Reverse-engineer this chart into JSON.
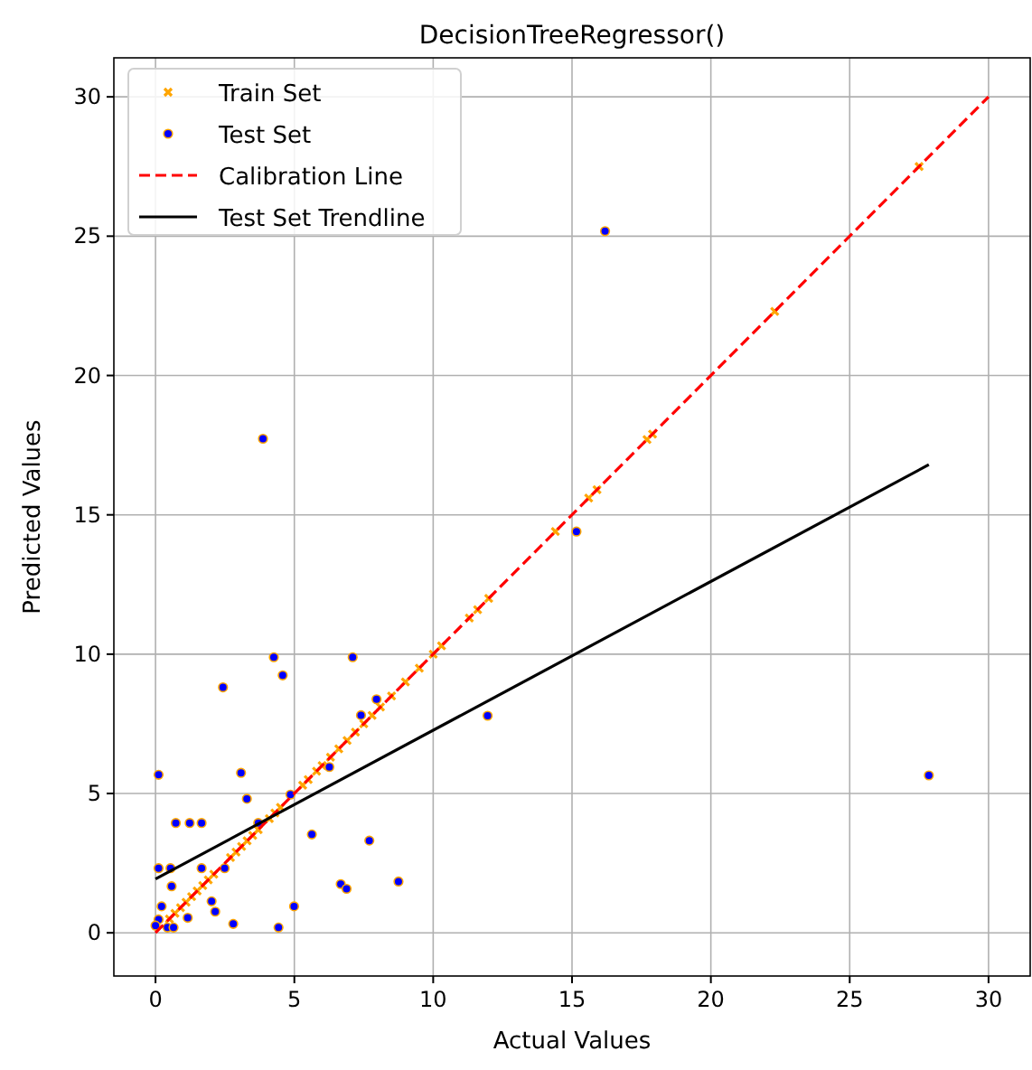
{
  "chart_data": {
    "type": "scatter",
    "title": "DecisionTreeRegressor()",
    "xlabel": "Actual Values",
    "ylabel": "Predicted Values",
    "xlim": [
      -1.5,
      31.5
    ],
    "ylim": [
      -1.55,
      31.4
    ],
    "xticks": [
      0,
      5,
      10,
      15,
      20,
      25,
      30
    ],
    "yticks": [
      0,
      5,
      10,
      15,
      20,
      25,
      30
    ],
    "grid": true,
    "legend": "top left",
    "series": [
      {
        "name": "Train Set",
        "type": "scatter",
        "marker": "cross",
        "color": "#ffa500",
        "x": [
          0.5,
          0.7,
          0.9,
          1.1,
          1.3,
          1.5,
          1.7,
          1.9,
          2.1,
          2.7,
          2.9,
          3.1,
          3.3,
          3.5,
          3.7,
          4.1,
          4.3,
          4.5,
          5.3,
          5.5,
          5.8,
          6.0,
          6.3,
          6.6,
          6.9,
          7.2,
          7.5,
          7.8,
          8.1,
          8.5,
          9.0,
          9.5,
          10.0,
          10.3,
          11.3,
          11.6,
          12.0,
          14.4,
          15.6,
          15.9,
          17.7,
          17.9,
          22.3,
          27.5
        ],
        "values": [
          0.5,
          0.7,
          0.9,
          1.1,
          1.3,
          1.5,
          1.7,
          1.9,
          2.1,
          2.7,
          2.9,
          3.1,
          3.3,
          3.5,
          3.7,
          4.1,
          4.3,
          4.5,
          5.3,
          5.5,
          5.8,
          6.0,
          6.3,
          6.6,
          6.9,
          7.2,
          7.5,
          7.8,
          8.1,
          8.5,
          9.0,
          9.5,
          10.0,
          10.3,
          11.3,
          11.6,
          12.0,
          14.4,
          15.6,
          15.9,
          17.7,
          17.9,
          22.3,
          27.5
        ]
      },
      {
        "name": "Test Set",
        "type": "scatter",
        "marker": "circle",
        "color": "#0000ff",
        "x": [
          4.26,
          7.1,
          4.58,
          2.43,
          0.11,
          3.08,
          3.29,
          4.86,
          3.7,
          0.73,
          1.23,
          1.66,
          7.4,
          7.96,
          6.26,
          5.63,
          7.7,
          0.11,
          0.54,
          1.66,
          2.49,
          0.58,
          6.67,
          6.88,
          8.75,
          2.02,
          2.15,
          4.99,
          1.16,
          2.8,
          4.43,
          0.22,
          0.11,
          0.43,
          0.65,
          0.0,
          11.96,
          27.85,
          3.87,
          16.19,
          15.16
        ],
        "values": [
          9.89,
          9.89,
          9.24,
          8.81,
          5.67,
          5.74,
          4.81,
          4.96,
          3.94,
          3.94,
          3.94,
          3.94,
          7.81,
          8.38,
          5.95,
          3.53,
          3.31,
          2.32,
          2.32,
          2.32,
          2.32,
          1.67,
          1.75,
          1.58,
          1.84,
          1.13,
          0.76,
          0.95,
          0.54,
          0.32,
          0.19,
          0.95,
          0.48,
          0.19,
          0.19,
          0.26,
          7.79,
          5.65,
          17.73,
          25.18,
          14.4
        ]
      },
      {
        "name": "Calibration Line",
        "type": "line",
        "line_style": "dashed",
        "color": "#ff0000",
        "x": [
          0,
          30
        ],
        "values": [
          0,
          30
        ]
      },
      {
        "name": "Test Set Trendline",
        "type": "line",
        "line_style": "solid",
        "color": "#000000",
        "x": [
          0,
          27.85
        ],
        "values": [
          1.93,
          16.8
        ]
      }
    ]
  }
}
